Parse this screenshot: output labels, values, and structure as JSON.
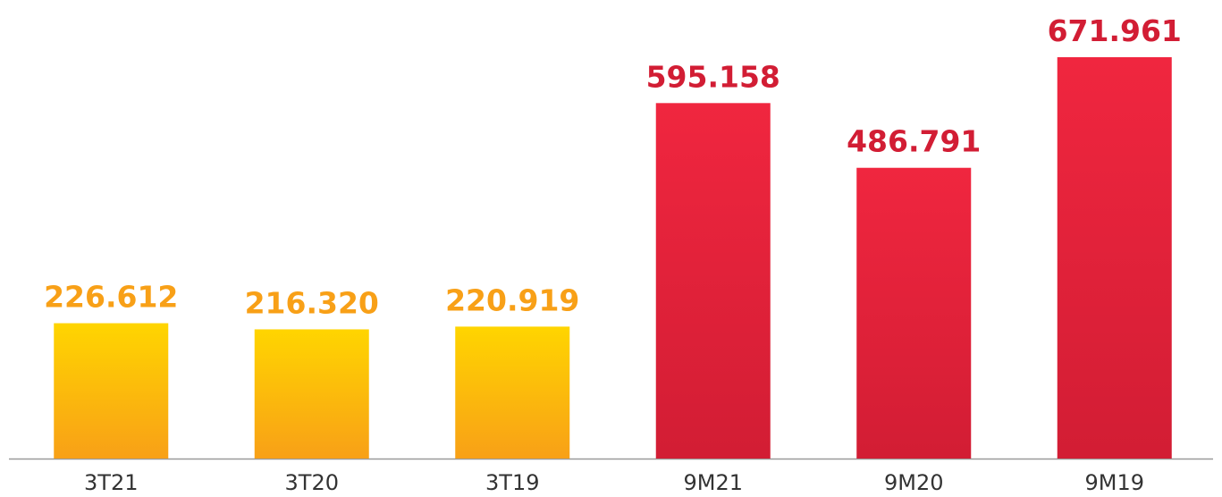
{
  "chart_data": {
    "type": "bar",
    "categories": [
      "3T21",
      "3T20",
      "3T19",
      "9M21",
      "9M20",
      "9M19"
    ],
    "values": [
      226.612,
      216.32,
      220.919,
      595.158,
      486.791,
      671.961
    ],
    "value_labels": [
      "226.612",
      "216.320",
      "220.919",
      "595.158",
      "486.791",
      "671.961"
    ],
    "colors": [
      [
        "#ffd500",
        "#f8a017"
      ],
      [
        "#ffd500",
        "#f8a017"
      ],
      [
        "#ffd500",
        "#f8a017"
      ],
      [
        "#f0263f",
        "#d21d34"
      ],
      [
        "#f0263f",
        "#d21d34"
      ],
      [
        "#f0263f",
        "#d21d34"
      ]
    ]
  }
}
